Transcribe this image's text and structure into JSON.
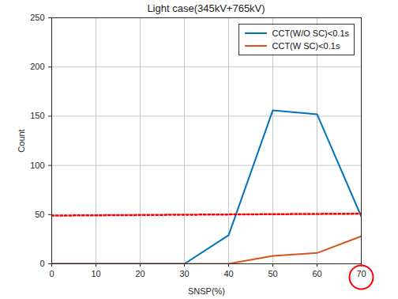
{
  "chart_data": {
    "type": "line",
    "title": "Light case(345kV+765kV)",
    "x_label": "SNSP(%)",
    "y_label": "Count",
    "x": [
      0,
      10,
      20,
      30,
      40,
      50,
      60,
      70
    ],
    "series": [
      {
        "name": "CCT(W/O SC)<0.1s",
        "color": "#0072BD",
        "line_style": "solid",
        "values": [
          0,
          0,
          0,
          0,
          29,
          156,
          152,
          48
        ]
      },
      {
        "name": "CCT(W SC)<0.1s",
        "color": "#D95319",
        "line_style": "solid",
        "values": [
          0,
          0,
          0,
          0,
          0,
          8,
          11,
          28
        ]
      }
    ],
    "reference_line": {
      "x": [
        0,
        70
      ],
      "values": [
        49,
        51
      ],
      "color": "#ff0000",
      "line_style": "dotted"
    },
    "highlighted_xtick": {
      "value": 70,
      "color": "#ff0000"
    },
    "xlim": [
      0,
      70
    ],
    "xticks": [
      0,
      10,
      20,
      30,
      40,
      50,
      60,
      70
    ],
    "ylim": [
      0,
      250
    ],
    "yticks": [
      0,
      50,
      100,
      150,
      200,
      250
    ],
    "grid": true,
    "legend": "upper right"
  }
}
